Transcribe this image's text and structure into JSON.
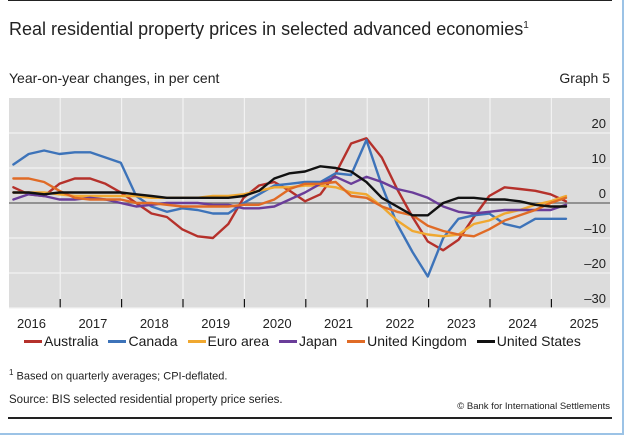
{
  "title": "Real residential property prices in selected advanced economies",
  "title_footnote_marker": "1",
  "subtitle": "Year-on-year changes, in per cent",
  "graph_number": "Graph 5",
  "footnote_marker": "1",
  "footnote": "Based on quarterly averages; CPI-deflated.",
  "source": "Source: BIS selected residential property price series.",
  "copyright": "© Bank for International Settlements",
  "chart_data": {
    "type": "line",
    "title": "Real residential property prices in selected advanced economies",
    "xlabel": "",
    "ylabel": "Year-on-year changes, in per cent",
    "x_start": "2016-Q1",
    "x_frequency": "quarterly",
    "x_tick_labels": [
      "2016",
      "2017",
      "2018",
      "2019",
      "2020",
      "2021",
      "2022",
      "2023",
      "2024",
      "2025"
    ],
    "y_tick_labels": [
      "20",
      "10",
      "0",
      "–10",
      "–20",
      "–30"
    ],
    "y_ticks": [
      20,
      10,
      0,
      -10,
      -20,
      -30
    ],
    "ylim": [
      -30,
      30
    ],
    "y_axis_side": "right",
    "grid": true,
    "legend_position": "bottom",
    "series": [
      {
        "name": "Australia",
        "color": "#b5312b",
        "values": [
          4.5,
          2.5,
          2,
          5.5,
          7,
          7,
          5.5,
          3,
          0,
          -3,
          -4,
          -7.5,
          -9.5,
          -10,
          -6,
          1.5,
          5,
          6,
          3.5,
          0.5,
          2.5,
          8.5,
          17,
          18.5,
          13,
          4,
          -4,
          -11,
          -13.5,
          -10.5,
          -4,
          2,
          4.5,
          4,
          3.5,
          2.5,
          0.5
        ]
      },
      {
        "name": "Canada",
        "color": "#3d73b9",
        "values": [
          11,
          14,
          15,
          14,
          14.5,
          14.5,
          13,
          11.5,
          2,
          -1,
          -2.5,
          -1.5,
          -2,
          -3,
          -3,
          0,
          2.5,
          5,
          5.5,
          6,
          6,
          8.5,
          8,
          18,
          5,
          -6,
          -14,
          -21,
          -10,
          -4.5,
          -3.5,
          -3,
          -6,
          -7,
          -4.5,
          -4.5,
          -4.5
        ]
      },
      {
        "name": "Euro area",
        "color": "#f0a830",
        "values": [
          3,
          3,
          3,
          2.5,
          2,
          2,
          2,
          2,
          2,
          1.5,
          1.5,
          1.5,
          1.5,
          2,
          2,
          2.5,
          3.5,
          4.5,
          4.5,
          5,
          5,
          4.5,
          3,
          2.5,
          -1,
          -5,
          -8,
          -9,
          -9.5,
          -9,
          -6,
          -5,
          -3,
          -2,
          -0.5,
          0.5,
          2
        ]
      },
      {
        "name": "Japan",
        "color": "#6a3d99",
        "values": [
          1,
          2.5,
          2,
          1,
          1,
          1.5,
          1,
          0,
          -1,
          -0.5,
          0,
          0,
          0,
          -0.5,
          -0.5,
          -1.5,
          -1.5,
          -1,
          1,
          3,
          5.5,
          7.5,
          5.5,
          7.5,
          6,
          4,
          3,
          1.5,
          -1,
          -2.5,
          -3,
          -2.5,
          -2,
          -2,
          -2,
          -2,
          -0.5
        ]
      },
      {
        "name": "United Kingdom",
        "color": "#e06b26",
        "values": [
          7,
          7,
          6,
          3.5,
          1.5,
          1,
          1,
          1,
          0,
          0,
          -0.5,
          -1,
          -1,
          -1,
          -1,
          -0.5,
          -0.5,
          1,
          4,
          5.5,
          5.5,
          6,
          2,
          1.5,
          -1,
          -2.5,
          -3.5,
          -6.5,
          -8,
          -9,
          -9.5,
          -7.5,
          -5,
          -3.5,
          -2,
          0,
          1.5
        ]
      },
      {
        "name": "United States",
        "color": "#111111",
        "values": [
          3,
          3,
          2.5,
          3,
          3,
          3,
          3,
          3,
          2.5,
          2,
          1.5,
          1.5,
          1.5,
          1.5,
          1.5,
          2,
          3.5,
          7,
          8.5,
          9,
          10.5,
          10,
          9,
          6,
          1.5,
          -1,
          -3.5,
          -3.5,
          0,
          1.5,
          1.5,
          1,
          1,
          0.5,
          -0.5,
          -1,
          -1
        ]
      }
    ]
  },
  "legend": [
    {
      "label": "Australia",
      "color": "#b5312b"
    },
    {
      "label": "Canada",
      "color": "#3d73b9"
    },
    {
      "label": "Euro area",
      "color": "#f0a830"
    },
    {
      "label": "Japan",
      "color": "#6a3d99"
    },
    {
      "label": "United Kingdom",
      "color": "#e06b26"
    },
    {
      "label": "United States",
      "color": "#111111"
    }
  ]
}
